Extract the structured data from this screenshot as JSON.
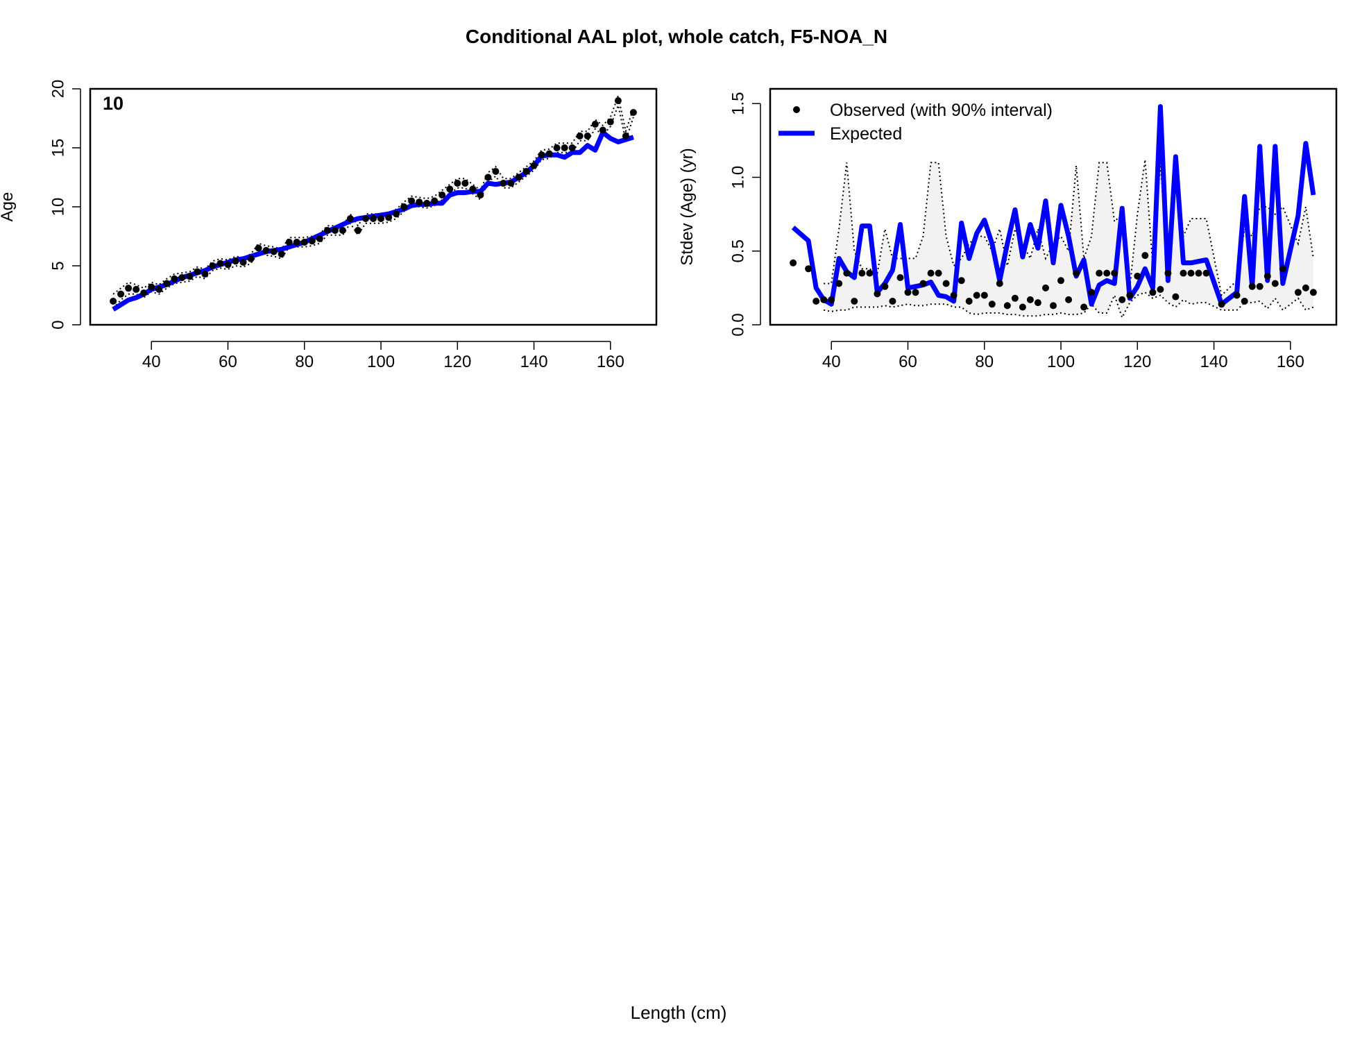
{
  "page": {
    "title": "Conditional AAL plot, whole catch, F5-NOA_N",
    "shared_xlabel": "Length (cm)"
  },
  "colors": {
    "expected_line": "#0000ff",
    "observed_points": "#000000",
    "interval_band": "#f2f2f2",
    "axes": "#000000"
  },
  "chart_data": [
    {
      "type": "line",
      "panel_label": "10",
      "ylabel": "Age",
      "xlim": [
        24,
        172
      ],
      "ylim": [
        0,
        20
      ],
      "xticks": [
        40,
        60,
        80,
        100,
        120,
        140,
        160
      ],
      "yticks": [
        0,
        5,
        10,
        15,
        20
      ],
      "grid": false,
      "x": [
        30,
        32,
        34,
        36,
        38,
        40,
        42,
        44,
        46,
        48,
        50,
        52,
        54,
        56,
        58,
        60,
        62,
        64,
        66,
        68,
        70,
        72,
        74,
        76,
        78,
        80,
        82,
        84,
        86,
        88,
        90,
        92,
        94,
        96,
        98,
        100,
        102,
        104,
        106,
        108,
        110,
        112,
        114,
        116,
        118,
        120,
        122,
        124,
        126,
        128,
        130,
        132,
        134,
        136,
        138,
        140,
        142,
        144,
        146,
        148,
        150,
        152,
        154,
        156,
        158,
        160,
        162,
        164,
        166
      ],
      "series": [
        {
          "name": "Observed (with 90% interval)",
          "style": "points",
          "values": [
            2,
            2.6,
            3.1,
            3,
            2.7,
            3.2,
            3,
            3.5,
            3.9,
            4,
            4.1,
            4.5,
            4.3,
            5,
            5.2,
            5.1,
            5.4,
            5.3,
            5.6,
            6.5,
            6.3,
            6.2,
            6,
            7,
            7,
            7,
            7.1,
            7.3,
            8,
            8,
            8,
            9,
            8,
            9,
            9,
            9,
            9.1,
            9.4,
            10,
            10.5,
            10.4,
            10.3,
            10.5,
            11,
            11.5,
            12,
            12,
            11.5,
            11,
            12.5,
            13,
            12,
            12,
            12.5,
            13,
            13.5,
            14.4,
            14.5,
            15,
            15,
            15,
            16,
            16,
            17,
            16.5,
            17.2,
            19,
            16,
            18
          ]
        },
        {
          "name": "Expected",
          "style": "line",
          "values": [
            1.3,
            1.7,
            2.1,
            2.3,
            2.6,
            3,
            3.2,
            3.4,
            3.7,
            4,
            4.2,
            4.4,
            4.6,
            4.9,
            5.1,
            5.3,
            5.5,
            5.6,
            5.8,
            6,
            6.2,
            6.3,
            6.4,
            6.6,
            6.8,
            7,
            7.3,
            7.6,
            7.9,
            8.2,
            8.5,
            8.8,
            9,
            9.1,
            9.2,
            9.3,
            9.4,
            9.6,
            9.8,
            10.1,
            10.2,
            10.2,
            10.3,
            10.3,
            11,
            11.2,
            11.2,
            11.3,
            11.3,
            12,
            11.9,
            12,
            12.1,
            12.5,
            12.9,
            13.5,
            14.3,
            14.4,
            14.4,
            14.2,
            14.6,
            14.6,
            15.2,
            14.8,
            16.3,
            15.8,
            15.5,
            15.7,
            15.9
          ]
        },
        {
          "name": "90% interval upper",
          "style": "dotted",
          "values": [
            2.6,
            3.1,
            3.6,
            3.4,
            3.1,
            3.6,
            3.4,
            3.9,
            4.3,
            4.4,
            4.5,
            4.9,
            4.7,
            5.4,
            5.6,
            5.5,
            5.8,
            5.7,
            6,
            6.9,
            6.7,
            6.6,
            6.4,
            7.4,
            7.4,
            7.4,
            7.5,
            7.7,
            8.4,
            8.4,
            8.4,
            9.4,
            8.4,
            9.4,
            9.4,
            9.4,
            9.5,
            9.8,
            10.4,
            10.9,
            10.8,
            10.7,
            10.9,
            11.4,
            11.9,
            12.4,
            12.4,
            11.9,
            11.4,
            12.9,
            13.4,
            12.4,
            12.4,
            12.9,
            13.4,
            13.9,
            14.8,
            14.9,
            15.4,
            15.4,
            15.4,
            16.4,
            16.4,
            17.4,
            16.9,
            17.6,
            19.4,
            16.4,
            18.4
          ]
        },
        {
          "name": "90% interval lower",
          "style": "dotted",
          "values": [
            1.4,
            2.1,
            2.6,
            2.6,
            2.3,
            2.8,
            2.6,
            3.1,
            3.5,
            3.6,
            3.7,
            4.1,
            3.9,
            4.6,
            4.8,
            4.7,
            5,
            4.9,
            5.2,
            6.1,
            5.9,
            5.8,
            5.6,
            6.6,
            6.6,
            6.6,
            6.7,
            6.9,
            7.6,
            7.6,
            7.6,
            8.6,
            7.6,
            8.6,
            8.6,
            8.6,
            8.7,
            9,
            9.6,
            10.1,
            10,
            9.9,
            10.1,
            10.6,
            11.1,
            11.6,
            11.6,
            11.1,
            10.6,
            12.1,
            12.6,
            11.6,
            11.6,
            12.1,
            12.6,
            13.1,
            14,
            14.1,
            14.6,
            14.6,
            14.6,
            15.6,
            15.6,
            16.6,
            16.1,
            16.8,
            18.6,
            15.6,
            17.6
          ]
        }
      ]
    },
    {
      "type": "line",
      "ylabel": "Stdev (Age) (yr)",
      "xlim": [
        24,
        172
      ],
      "ylim": [
        0,
        1.6
      ],
      "xticks": [
        40,
        60,
        80,
        100,
        120,
        140,
        160
      ],
      "yticks": [
        0.0,
        0.5,
        1.0,
        1.5
      ],
      "ytick_labels": [
        "0.0",
        "0.5",
        "1.0",
        "1.5"
      ],
      "grid": false,
      "legend": {
        "position": "top-left",
        "entries": [
          {
            "label": "Observed (with 90% interval)",
            "symbol": "point"
          },
          {
            "label": "Expected",
            "symbol": "line"
          }
        ]
      },
      "series": [
        {
          "name": "Observed (with 90% interval)",
          "style": "points",
          "x": [
            30,
            34,
            36,
            38,
            40,
            42,
            44,
            46,
            48,
            50,
            52,
            54,
            56,
            58,
            60,
            62,
            64,
            66,
            68,
            70,
            72,
            74,
            76,
            78,
            80,
            82,
            84,
            86,
            88,
            90,
            92,
            94,
            96,
            98,
            100,
            102,
            104,
            106,
            108,
            110,
            112,
            114,
            116,
            118,
            120,
            122,
            124,
            126,
            128,
            130,
            132,
            134,
            136,
            138,
            142,
            146,
            148,
            150,
            152,
            154,
            156,
            158,
            162,
            164,
            166
          ],
          "values": [
            0.42,
            0.38,
            0.16,
            0.17,
            0.17,
            0.28,
            0.35,
            0.16,
            0.35,
            0.35,
            0.21,
            0.26,
            0.16,
            0.32,
            0.22,
            0.22,
            0.28,
            0.35,
            0.35,
            0.28,
            0.2,
            0.3,
            0.16,
            0.2,
            0.2,
            0.14,
            0.28,
            0.13,
            0.18,
            0.12,
            0.17,
            0.15,
            0.25,
            0.13,
            0.3,
            0.17,
            0.35,
            0.12,
            0.22,
            0.35,
            0.35,
            0.35,
            0.17,
            0.2,
            0.33,
            0.47,
            0.22,
            0.24,
            0.35,
            0.19,
            0.35,
            0.35,
            0.35,
            0.35,
            0.14,
            0.2,
            0.16,
            0.26,
            0.26,
            0.33,
            0.28,
            0.38,
            0.22,
            0.25,
            0.22
          ]
        },
        {
          "name": "Expected",
          "style": "line",
          "x": [
            30,
            34,
            36,
            38,
            40,
            42,
            44,
            46,
            48,
            50,
            52,
            54,
            56,
            58,
            60,
            62,
            64,
            66,
            68,
            70,
            72,
            74,
            76,
            78,
            80,
            82,
            84,
            86,
            88,
            90,
            92,
            94,
            96,
            98,
            100,
            102,
            104,
            106,
            108,
            110,
            112,
            114,
            116,
            118,
            120,
            122,
            124,
            126,
            128,
            130,
            132,
            134,
            136,
            138,
            142,
            146,
            148,
            150,
            152,
            154,
            156,
            158,
            162,
            164,
            166
          ],
          "values": [
            0.66,
            0.57,
            0.25,
            0.17,
            0.14,
            0.45,
            0.36,
            0.32,
            0.67,
            0.67,
            0.22,
            0.28,
            0.37,
            0.68,
            0.25,
            0.26,
            0.27,
            0.29,
            0.2,
            0.19,
            0.16,
            0.69,
            0.45,
            0.62,
            0.71,
            0.55,
            0.3,
            0.55,
            0.78,
            0.46,
            0.68,
            0.52,
            0.84,
            0.42,
            0.81,
            0.6,
            0.33,
            0.44,
            0.14,
            0.27,
            0.3,
            0.28,
            0.79,
            0.18,
            0.26,
            0.38,
            0.25,
            1.48,
            0.3,
            1.14,
            0.42,
            0.42,
            0.43,
            0.44,
            0.14,
            0.22,
            0.87,
            0.26,
            1.21,
            0.3,
            1.21,
            0.28,
            0.74,
            1.23,
            0.88
          ]
        },
        {
          "name": "90% interval upper",
          "style": "dotted",
          "x": [
            38,
            40,
            42,
            44,
            46,
            48,
            50,
            52,
            54,
            56,
            58,
            60,
            62,
            64,
            66,
            68,
            70,
            72,
            74,
            76,
            78,
            80,
            82,
            84,
            86,
            88,
            90,
            92,
            94,
            96,
            98,
            100,
            102,
            104,
            106,
            108,
            110,
            112,
            114,
            116,
            118,
            120,
            122,
            124,
            126,
            128,
            130,
            132,
            134,
            136,
            138,
            142,
            146,
            148,
            150,
            152,
            154,
            156,
            158,
            162,
            164,
            166
          ],
          "values": [
            0.28,
            0.28,
            0.65,
            1.1,
            0.5,
            0.38,
            0.38,
            0.35,
            0.65,
            0.45,
            0.45,
            0.45,
            0.45,
            0.6,
            1.1,
            1.1,
            0.6,
            0.4,
            0.45,
            0.55,
            0.6,
            0.6,
            0.5,
            0.65,
            0.4,
            0.65,
            0.55,
            0.45,
            0.65,
            0.45,
            0.55,
            0.6,
            0.5,
            1.08,
            0.45,
            0.6,
            1.1,
            1.1,
            0.7,
            0.75,
            0.25,
            0.75,
            1.12,
            0.4,
            1.1,
            0.35,
            1.1,
            0.6,
            0.72,
            0.72,
            0.72,
            0.2,
            0.3,
            0.65,
            0.6,
            0.8,
            0.8,
            0.75,
            0.8,
            0.55,
            0.8,
            0.45
          ]
        },
        {
          "name": "90% interval lower",
          "style": "dotted",
          "x": [
            38,
            40,
            42,
            44,
            46,
            48,
            50,
            52,
            54,
            56,
            58,
            60,
            62,
            64,
            66,
            68,
            70,
            72,
            74,
            76,
            78,
            80,
            82,
            84,
            86,
            88,
            90,
            92,
            94,
            96,
            98,
            100,
            102,
            104,
            106,
            108,
            110,
            112,
            114,
            116,
            118,
            120,
            122,
            124,
            126,
            128,
            130,
            132,
            134,
            136,
            138,
            142,
            146,
            148,
            150,
            152,
            154,
            156,
            158,
            162,
            164,
            166
          ],
          "values": [
            0.1,
            0.09,
            0.1,
            0.1,
            0.12,
            0.12,
            0.12,
            0.12,
            0.13,
            0.12,
            0.13,
            0.14,
            0.13,
            0.13,
            0.14,
            0.14,
            0.14,
            0.12,
            0.12,
            0.08,
            0.07,
            0.08,
            0.08,
            0.08,
            0.07,
            0.07,
            0.06,
            0.06,
            0.06,
            0.07,
            0.07,
            0.08,
            0.07,
            0.07,
            0.08,
            0.14,
            0.08,
            0.08,
            0.2,
            0.05,
            0.15,
            0.2,
            0.22,
            0.18,
            0.2,
            0.15,
            0.12,
            0.17,
            0.14,
            0.15,
            0.15,
            0.1,
            0.1,
            0.15,
            0.15,
            0.16,
            0.11,
            0.18,
            0.1,
            0.18,
            0.1,
            0.12
          ]
        }
      ]
    }
  ]
}
